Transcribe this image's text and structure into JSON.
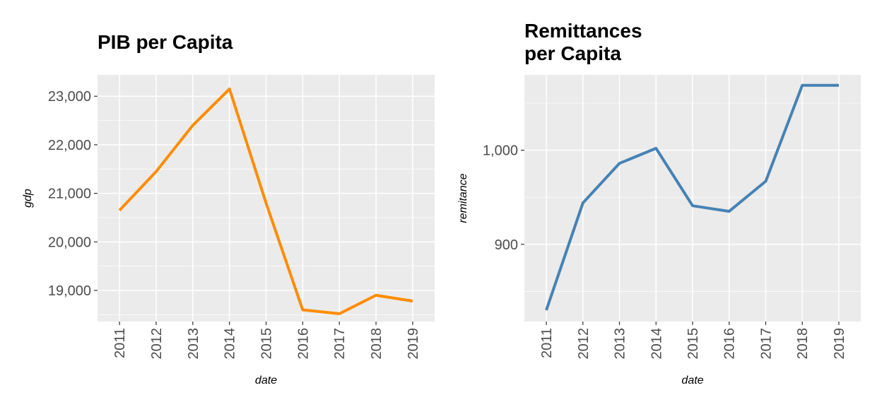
{
  "chart_data": [
    {
      "type": "line",
      "title": "PIB per Capita",
      "xlabel": "date",
      "ylabel": "gdp",
      "x": [
        "2011",
        "2012",
        "2013",
        "2014",
        "2015",
        "2016",
        "2017",
        "2018",
        "2019"
      ],
      "series": [
        {
          "values": [
            20650,
            21450,
            22400,
            23150,
            20800,
            18600,
            18520,
            18900,
            18780
          ],
          "color": "#FF8C00"
        }
      ],
      "yticks": [
        19000,
        20000,
        21000,
        22000,
        23000
      ],
      "ytick_labels": [
        "19,000",
        "20,000",
        "21,000",
        "22,000",
        "23,000"
      ],
      "ylim": [
        18360,
        23440
      ],
      "grid": true,
      "background": "#EBEBEB"
    },
    {
      "type": "line",
      "title": "Remittances\nper Capita",
      "xlabel": "date",
      "ylabel": "remitance",
      "x": [
        "2011",
        "2012",
        "2013",
        "2014",
        "2015",
        "2016",
        "2017",
        "2018",
        "2019"
      ],
      "series": [
        {
          "values": [
            830,
            944,
            986,
            1002,
            941,
            935,
            967,
            1069,
            1069
          ],
          "color": "#4682B4"
        }
      ],
      "yticks": [
        900,
        1000
      ],
      "ytick_labels": [
        "900",
        "1,000"
      ],
      "ylim": [
        818,
        1080
      ],
      "grid": true,
      "background": "#EBEBEB"
    }
  ]
}
